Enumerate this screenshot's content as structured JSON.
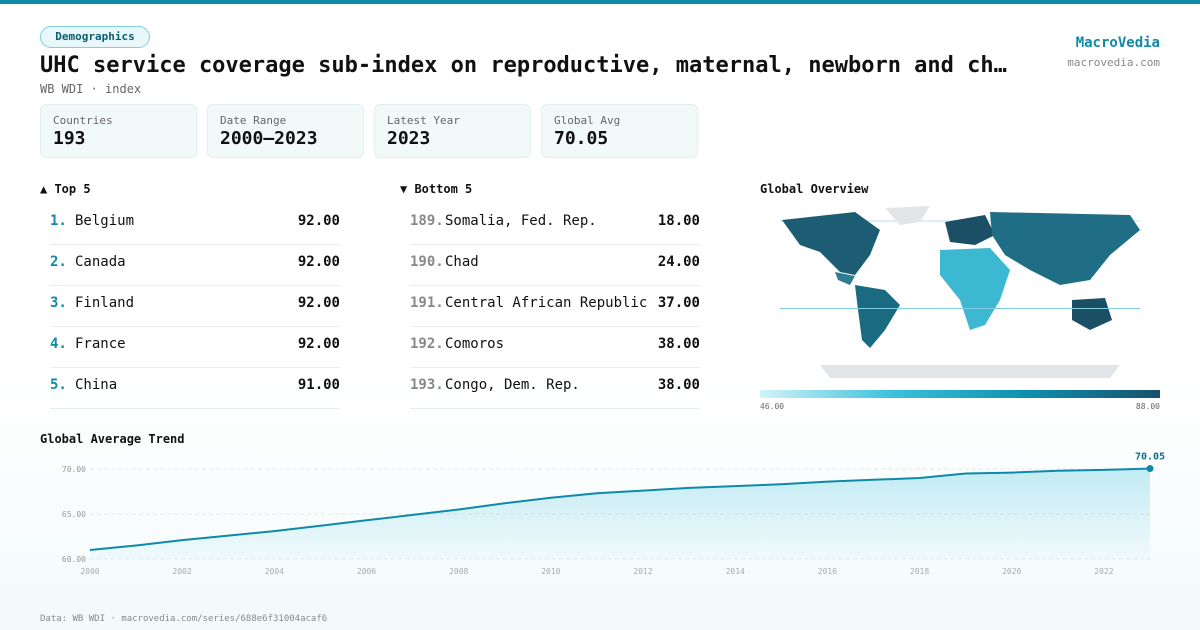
{
  "header": {
    "tag": "Demographics",
    "title": "UHC service coverage sub-index on reproductive, maternal, newborn and ch…",
    "subtitle": "WB WDI · index",
    "brand": "MacroVedia",
    "site": "macrovedia.com"
  },
  "stats": [
    {
      "label": "Countries",
      "value": 193
    },
    {
      "label": "Date Range",
      "value": "2000–2023"
    },
    {
      "label": "Latest Year",
      "value": 2023
    },
    {
      "label": "Global Avg",
      "value": 70.05
    }
  ],
  "top": {
    "title": "▲ Top 5",
    "rows": [
      {
        "rank": "1.",
        "name": "Belgium",
        "value": "92.00"
      },
      {
        "rank": "2.",
        "name": "Canada",
        "value": "92.00"
      },
      {
        "rank": "3.",
        "name": "Finland",
        "value": "92.00"
      },
      {
        "rank": "4.",
        "name": "France",
        "value": "92.00"
      },
      {
        "rank": "5.",
        "name": "China",
        "value": "91.00"
      }
    ]
  },
  "bottom": {
    "title": "▼ Bottom 5",
    "rows": [
      {
        "rank": "189.",
        "name": "Somalia, Fed. Rep.",
        "value": "18.00"
      },
      {
        "rank": "190.",
        "name": "Chad",
        "value": "24.00"
      },
      {
        "rank": "191.",
        "name": "Central African Republic",
        "value": "37.00"
      },
      {
        "rank": "192.",
        "name": "Comoros",
        "value": "38.00"
      },
      {
        "rank": "193.",
        "name": "Congo, Dem. Rep.",
        "value": "38.00"
      }
    ]
  },
  "map": {
    "title": "Global Overview",
    "legend_min": "46.00",
    "legend_max": "88.00"
  },
  "chart_data": {
    "type": "line",
    "title": "Global Average Trend",
    "color": "#0e8aa6",
    "x": [
      2000,
      2001,
      2002,
      2003,
      2004,
      2005,
      2006,
      2007,
      2008,
      2009,
      2010,
      2011,
      2012,
      2013,
      2014,
      2015,
      2016,
      2017,
      2018,
      2019,
      2020,
      2021,
      2022,
      2023
    ],
    "values": [
      61.0,
      61.5,
      62.1,
      62.6,
      63.1,
      63.7,
      64.3,
      64.9,
      65.5,
      66.2,
      66.8,
      67.3,
      67.6,
      67.9,
      68.1,
      68.3,
      68.6,
      68.8,
      69.0,
      69.5,
      69.6,
      69.8,
      69.9,
      70.05
    ],
    "value_labels": [
      null,
      null,
      null,
      null,
      null,
      null,
      null,
      null,
      null,
      null,
      null,
      null,
      null,
      null,
      null,
      null,
      null,
      null,
      null,
      null,
      null,
      null,
      null,
      "70.05"
    ],
    "xlim": [
      2000,
      2023
    ],
    "xticks": [
      2000,
      2002,
      2004,
      2006,
      2008,
      2010,
      2012,
      2014,
      2016,
      2018,
      2020,
      2022
    ],
    "ylim": [
      60,
      71
    ],
    "yticks": [
      {
        "value": 60,
        "label": "60.00"
      },
      {
        "value": 65,
        "label": "65.00"
      },
      {
        "value": 70,
        "label": "70.00"
      }
    ],
    "grid": true
  },
  "footer": "Data: WB WDI · macrovedia.com/series/688e6f31004acaf6"
}
